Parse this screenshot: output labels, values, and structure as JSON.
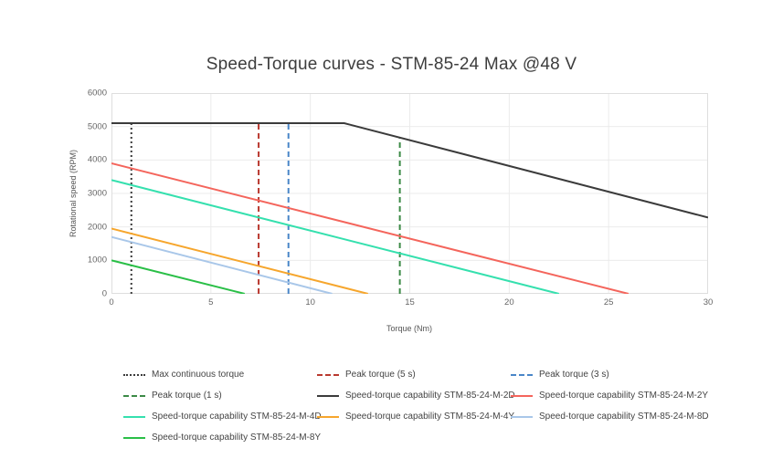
{
  "page": {
    "background": "#ffffff"
  },
  "chart_data": {
    "type": "line",
    "title": "Speed-Torque curves - STM-85-24 Max @48 V",
    "xlabel": "Torque (Nm)",
    "ylabel": "Rotational speed (RPM)",
    "xlim": [
      0,
      30
    ],
    "ylim": [
      0,
      6000
    ],
    "xticks": [
      0,
      5,
      10,
      15,
      20,
      25,
      30
    ],
    "yticks": [
      0,
      1000,
      2000,
      3000,
      4000,
      5000,
      6000
    ],
    "grid": true,
    "grid_color": "#ebebeb",
    "border_color": "#dedede",
    "legend_position": "bottom",
    "series": [
      {
        "name": "Speed-torque capability STM-85-24-M-2D",
        "color": "#3b3b3b",
        "style": "solid",
        "points": [
          [
            0,
            5100
          ],
          [
            11.7,
            5100
          ],
          [
            30,
            2280
          ]
        ]
      },
      {
        "name": "Speed-torque capability STM-85-24-M-2Y",
        "color": "#f4655c",
        "style": "solid",
        "points": [
          [
            0,
            3900
          ],
          [
            26,
            0
          ]
        ]
      },
      {
        "name": "Speed-torque capability STM-85-24-M-4D",
        "color": "#35e0ae",
        "style": "solid",
        "points": [
          [
            0,
            3400
          ],
          [
            22.5,
            0
          ]
        ]
      },
      {
        "name": "Speed-torque capability STM-85-24-M-4Y",
        "color": "#f6a62d",
        "style": "solid",
        "points": [
          [
            0,
            1950
          ],
          [
            12.9,
            0
          ]
        ]
      },
      {
        "name": "Speed-torque capability STM-85-24-M-8D",
        "color": "#a9c7e9",
        "style": "solid",
        "points": [
          [
            0,
            1700
          ],
          [
            11.1,
            0
          ]
        ]
      },
      {
        "name": "Speed-torque capability STM-85-24-M-8Y",
        "color": "#2abf47",
        "style": "solid",
        "points": [
          [
            0,
            1000
          ],
          [
            6.7,
            0
          ]
        ]
      }
    ],
    "vlines": [
      {
        "name": "Max continuous torque",
        "x": 1.0,
        "y_top": 5100,
        "color": "#3b3b3b",
        "style": "dotted"
      },
      {
        "name": "Peak torque (5 s)",
        "x": 7.4,
        "y_top": 5100,
        "color": "#b9392f",
        "style": "dashed"
      },
      {
        "name": "Peak torque (3 s)",
        "x": 8.9,
        "y_top": 5100,
        "color": "#4a86c8",
        "style": "dashed"
      },
      {
        "name": "Peak torque (1 s)",
        "x": 14.5,
        "y_top": 4670,
        "color": "#3c8a46",
        "style": "dashed"
      }
    ],
    "legend": [
      {
        "name": "Max continuous torque",
        "color": "#3b3b3b",
        "style": "dotted"
      },
      {
        "name": "Peak torque (5 s)",
        "color": "#b9392f",
        "style": "dashed"
      },
      {
        "name": "Peak torque (3 s)",
        "color": "#4a86c8",
        "style": "dashed"
      },
      {
        "name": "Peak torque (1 s)",
        "color": "#3c8a46",
        "style": "dashed"
      },
      {
        "name": "Speed-torque capability STM-85-24-M-2D",
        "color": "#3b3b3b",
        "style": "solid"
      },
      {
        "name": "Speed-torque capability STM-85-24-M-2Y",
        "color": "#f4655c",
        "style": "solid"
      },
      {
        "name": "Speed-torque capability STM-85-24-M-4D",
        "color": "#35e0ae",
        "style": "solid"
      },
      {
        "name": "Speed-torque capability STM-85-24-M-4Y",
        "color": "#f6a62d",
        "style": "solid"
      },
      {
        "name": "Speed-torque capability STM-85-24-M-8D",
        "color": "#a9c7e9",
        "style": "solid"
      },
      {
        "name": "Speed-torque capability STM-85-24-M-8Y",
        "color": "#2abf47",
        "style": "solid"
      }
    ]
  }
}
